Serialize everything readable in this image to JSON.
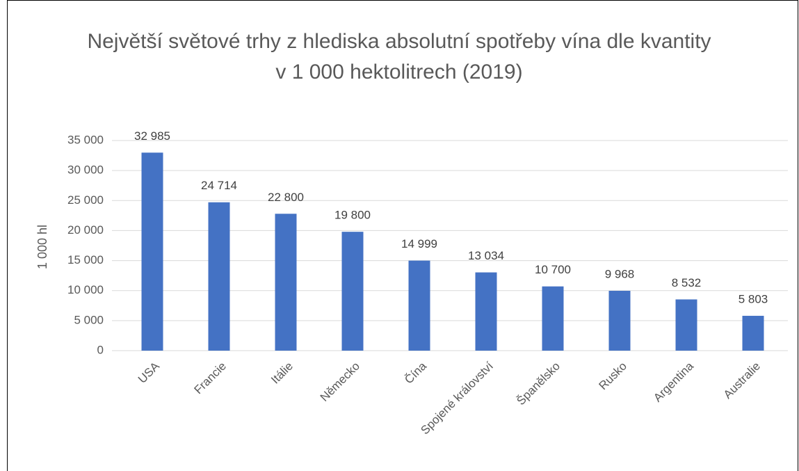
{
  "chart_data": {
    "type": "bar",
    "title": "Největší světové trhy z hlediska absolutní spotřeby vína dle kvantity v 1 000 hektolitrech (2019)",
    "y_label": "1 000 hl",
    "categories": [
      "USA",
      "Francie",
      "Itálie",
      "Německo",
      "Čína",
      "Spojené království",
      "Španělsko",
      "Rusko",
      "Argentina",
      "Australie"
    ],
    "values": [
      32985,
      24714,
      22800,
      19800,
      14999,
      13034,
      10700,
      9968,
      8532,
      5803
    ],
    "value_labels": [
      "32 985",
      "24 714",
      "22 800",
      "19 800",
      "14 999",
      "13 034",
      "10 700",
      "9 968",
      "8 532",
      "5 803"
    ],
    "color": "#4472c4",
    "ylim": [
      0,
      35000
    ],
    "yticks": [
      0,
      {
        "value": 5000,
        "label": "5 000"
      },
      {
        "value": 10000,
        "label": "10 000"
      },
      {
        "value": 15000,
        "label": "15 000"
      },
      {
        "value": 20000,
        "label": "20 000"
      },
      {
        "value": 25000,
        "label": "25 000"
      },
      {
        "value": 30000,
        "label": "30 000"
      },
      {
        "value": 35000,
        "label": "35 000"
      }
    ],
    "grid": true
  }
}
